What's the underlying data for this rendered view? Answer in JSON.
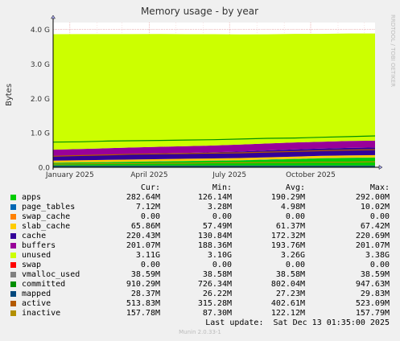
{
  "chart_data": {
    "type": "area",
    "title": "Memory usage - by year",
    "ylabel": "Bytes",
    "watermark": "RRDTOOL / TOBI OETIKER",
    "ylim": [
      0,
      4.2
    ],
    "yticks": [
      {
        "value": 0.0,
        "label": "0.0"
      },
      {
        "value": 1.0,
        "label": "1.0 G"
      },
      {
        "value": 2.0,
        "label": "2.0 G"
      },
      {
        "value": 3.0,
        "label": "3.0 G"
      },
      {
        "value": 4.0,
        "label": "4.0 G"
      }
    ],
    "xlim": [
      "2024-12-13",
      "2025-12-13"
    ],
    "xticks": [
      {
        "date": "2025-01-01",
        "label": "January 2025"
      },
      {
        "date": "2025-04-01",
        "label": "April 2025"
      },
      {
        "date": "2025-07-01",
        "label": "July 2025"
      },
      {
        "date": "2025-10-01",
        "label": "October 2025"
      }
    ],
    "x": [
      "2024-12-13",
      "2025-01-13",
      "2025-02-13",
      "2025-03-13",
      "2025-04-13",
      "2025-05-13",
      "2025-06-13",
      "2025-07-13",
      "2025-08-13",
      "2025-09-13",
      "2025-10-13",
      "2025-11-13",
      "2025-12-13"
    ],
    "stack_unit": "GB",
    "series": [
      {
        "name": "apps",
        "color": "#00cc00",
        "values": [
          0.13,
          0.14,
          0.15,
          0.16,
          0.17,
          0.18,
          0.19,
          0.2,
          0.22,
          0.24,
          0.26,
          0.27,
          0.28
        ]
      },
      {
        "name": "page_tables",
        "color": "#0066b3",
        "values": [
          0.004,
          0.004,
          0.004,
          0.004,
          0.005,
          0.005,
          0.005,
          0.005,
          0.006,
          0.006,
          0.006,
          0.007,
          0.007
        ]
      },
      {
        "name": "swap_cache",
        "color": "#ff8000",
        "values": [
          0,
          0,
          0,
          0,
          0,
          0,
          0,
          0,
          0,
          0,
          0,
          0,
          0
        ]
      },
      {
        "name": "slab_cache",
        "color": "#ffcc00",
        "values": [
          0.058,
          0.059,
          0.06,
          0.06,
          0.061,
          0.062,
          0.062,
          0.063,
          0.064,
          0.064,
          0.065,
          0.066,
          0.066
        ]
      },
      {
        "name": "cache",
        "color": "#330099",
        "values": [
          0.13,
          0.14,
          0.15,
          0.16,
          0.17,
          0.17,
          0.18,
          0.19,
          0.2,
          0.21,
          0.21,
          0.22,
          0.22
        ]
      },
      {
        "name": "buffers",
        "color": "#990099",
        "values": [
          0.19,
          0.19,
          0.19,
          0.19,
          0.19,
          0.195,
          0.195,
          0.2,
          0.2,
          0.2,
          0.2,
          0.2,
          0.2
        ]
      },
      {
        "name": "unused",
        "color": "#ccff00",
        "values": [
          3.35,
          3.33,
          3.31,
          3.29,
          3.27,
          3.25,
          3.23,
          3.2,
          3.17,
          3.15,
          3.13,
          3.12,
          3.11
        ]
      },
      {
        "name": "swap",
        "color": "#ff0000",
        "values": [
          0,
          0,
          0,
          0,
          0,
          0,
          0,
          0,
          0,
          0,
          0,
          0,
          0
        ]
      }
    ],
    "lines": [
      {
        "name": "vmalloc_used",
        "color": "#808080",
        "values": [
          0.039,
          0.039,
          0.039,
          0.039,
          0.039,
          0.039,
          0.039,
          0.039,
          0.039,
          0.039,
          0.039,
          0.039,
          0.039
        ]
      },
      {
        "name": "committed",
        "color": "#008f00",
        "values": [
          0.73,
          0.74,
          0.76,
          0.77,
          0.78,
          0.79,
          0.8,
          0.82,
          0.84,
          0.85,
          0.87,
          0.89,
          0.91
        ]
      },
      {
        "name": "mapped",
        "color": "#00487d",
        "values": [
          0.027,
          0.027,
          0.027,
          0.027,
          0.027,
          0.027,
          0.027,
          0.027,
          0.028,
          0.028,
          0.028,
          0.028,
          0.028
        ]
      },
      {
        "name": "active",
        "color": "#b35a00",
        "values": [
          0.32,
          0.34,
          0.36,
          0.38,
          0.39,
          0.4,
          0.41,
          0.42,
          0.44,
          0.46,
          0.48,
          0.5,
          0.51
        ]
      },
      {
        "name": "inactive",
        "color": "#b38f00",
        "values": [
          0.09,
          0.1,
          0.11,
          0.11,
          0.12,
          0.12,
          0.13,
          0.13,
          0.14,
          0.14,
          0.15,
          0.15,
          0.16
        ]
      }
    ]
  },
  "legend": {
    "headers": {
      "cur": "Cur:",
      "min": "Min:",
      "avg": "Avg:",
      "max": "Max:"
    },
    "rows": [
      {
        "name": "apps",
        "color": "#00cc00",
        "cur": "282.64M",
        "min": "126.14M",
        "avg": "190.29M",
        "max": "292.00M"
      },
      {
        "name": "page_tables",
        "color": "#0066b3",
        "cur": "7.12M",
        "min": "3.28M",
        "avg": "4.98M",
        "max": "10.02M"
      },
      {
        "name": "swap_cache",
        "color": "#ff8000",
        "cur": "0.00",
        "min": "0.00",
        "avg": "0.00",
        "max": "0.00"
      },
      {
        "name": "slab_cache",
        "color": "#ffcc00",
        "cur": "65.86M",
        "min": "57.49M",
        "avg": "61.37M",
        "max": "67.42M"
      },
      {
        "name": "cache",
        "color": "#330099",
        "cur": "220.43M",
        "min": "130.84M",
        "avg": "172.32M",
        "max": "220.69M"
      },
      {
        "name": "buffers",
        "color": "#990099",
        "cur": "201.07M",
        "min": "188.36M",
        "avg": "193.76M",
        "max": "201.07M"
      },
      {
        "name": "unused",
        "color": "#ccff00",
        "cur": "3.11G",
        "min": "3.10G",
        "avg": "3.26G",
        "max": "3.38G"
      },
      {
        "name": "swap",
        "color": "#ff0000",
        "cur": "0.00",
        "min": "0.00",
        "avg": "0.00",
        "max": "0.00"
      },
      {
        "name": "vmalloc_used",
        "color": "#808080",
        "cur": "38.59M",
        "min": "38.58M",
        "avg": "38.58M",
        "max": "38.59M"
      },
      {
        "name": "committed",
        "color": "#008f00",
        "cur": "910.29M",
        "min": "726.34M",
        "avg": "802.04M",
        "max": "947.63M"
      },
      {
        "name": "mapped",
        "color": "#00487d",
        "cur": "28.37M",
        "min": "26.22M",
        "avg": "27.23M",
        "max": "29.83M"
      },
      {
        "name": "active",
        "color": "#b35a00",
        "cur": "513.83M",
        "min": "315.28M",
        "avg": "402.61M",
        "max": "523.09M"
      },
      {
        "name": "inactive",
        "color": "#b38f00",
        "cur": "157.78M",
        "min": "87.30M",
        "avg": "122.12M",
        "max": "157.79M"
      }
    ],
    "last_update": "Last update:  Sat Dec 13 01:35:00 2025"
  },
  "footer": {
    "version": "Munin 2.0.33-1"
  }
}
